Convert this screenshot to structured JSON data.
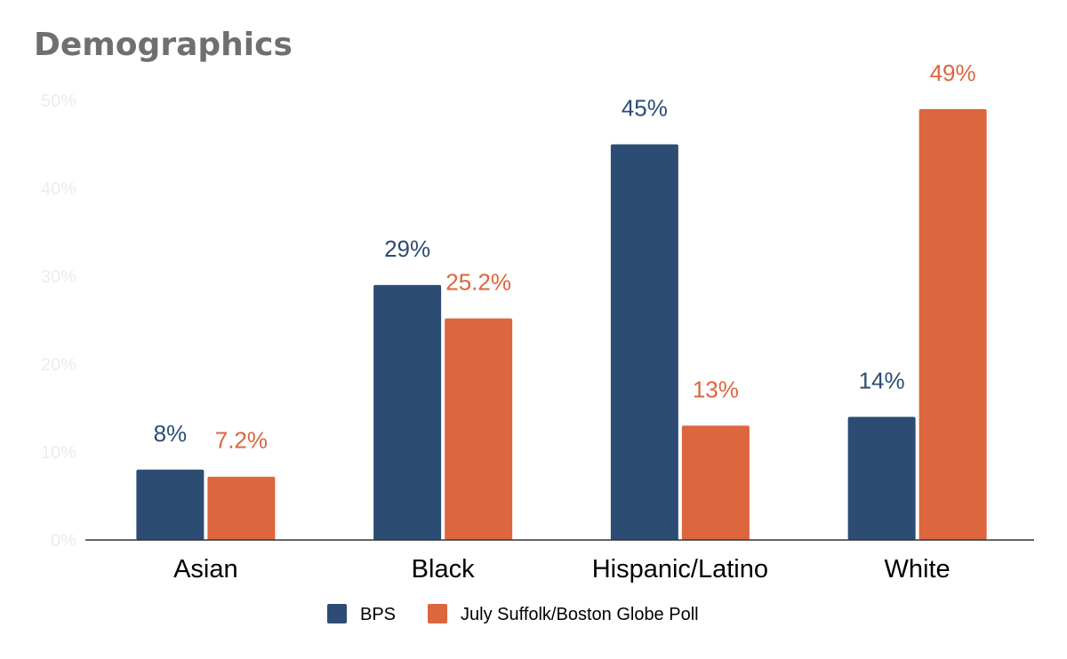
{
  "chart_data": {
    "type": "bar",
    "title": "Demographics",
    "categories": [
      "Asian",
      "Black",
      "Hispanic/Latino",
      "White"
    ],
    "series": [
      {
        "name": "BPS",
        "color": "#2c4c74",
        "values": [
          8,
          29,
          45,
          14
        ],
        "labels": [
          "8%",
          "29%",
          "45%",
          "14%"
        ]
      },
      {
        "name": "July Suffolk/Boston Globe Poll",
        "color": "#dc663d",
        "values": [
          7.2,
          25.2,
          13,
          49
        ],
        "labels": [
          "7.2%",
          "25.2%",
          "13%",
          "49%"
        ]
      }
    ],
    "ylim": [
      0,
      50
    ],
    "yticks": [
      0,
      10,
      20,
      30,
      40,
      50
    ],
    "ytick_labels": [
      "0%",
      "10%",
      "20%",
      "30%",
      "40%",
      "50%"
    ],
    "xlabel": "",
    "ylabel": "",
    "grid": false,
    "legend": "bottom-center"
  }
}
